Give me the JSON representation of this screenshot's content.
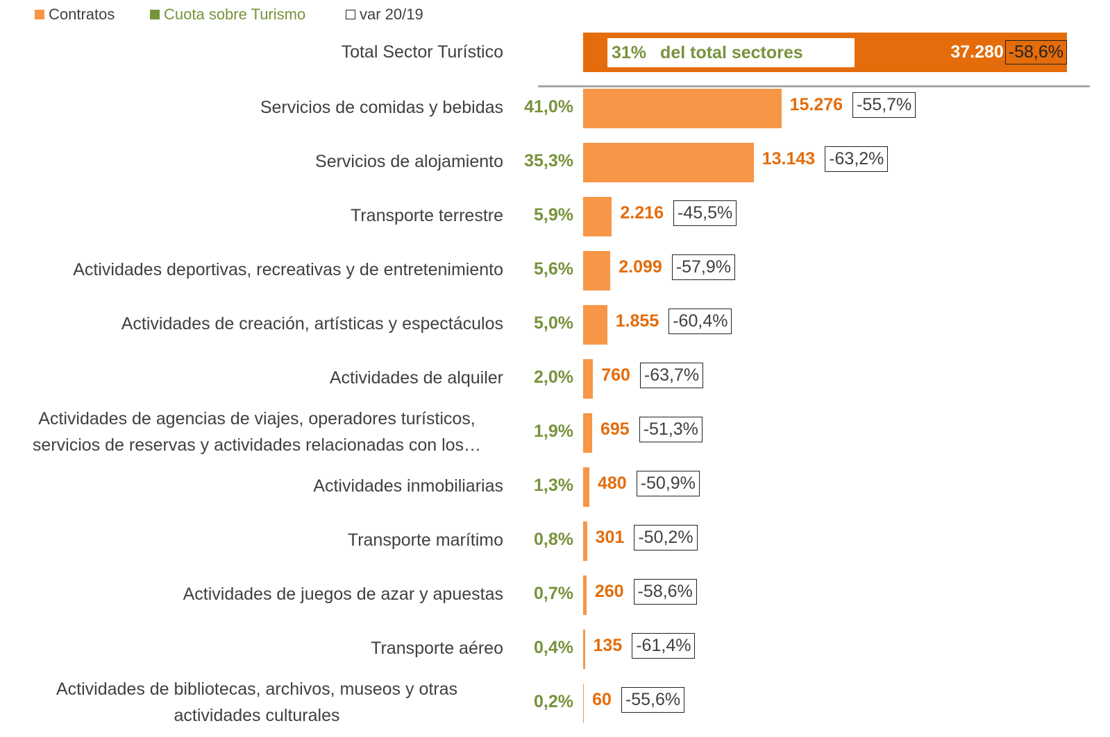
{
  "chart_data": {
    "type": "bar",
    "orientation": "horizontal",
    "total": {
      "label": "Total Sector Turístico",
      "value": 37280,
      "value_label": "37.280",
      "share": 31,
      "share_label": "31%",
      "share_text": "del total sectores",
      "var": -58.6,
      "var_label": "-58,6%",
      "color": "#e46c0a"
    },
    "categories": [
      "Servicios de comidas y bebidas",
      "Servicios de alojamiento",
      "Transporte terrestre",
      "Actividades deportivas, recreativas y de entretenimiento",
      "Actividades de creación, artísticas y espectáculos",
      "Actividades de alquiler",
      "Actividades de agencias de viajes, operadores turísticos,\nservicios de reservas y actividades relacionadas con los…",
      "Actividades inmobiliarias",
      "Transporte marítimo",
      "Actividades de juegos de azar y apuestas",
      "Transporte aéreo",
      "Actividades de bibliotecas, archivos, museos y otras\nactividades culturales"
    ],
    "series": [
      {
        "name": "Contratos",
        "color": "#f79646",
        "values": [
          15276,
          13143,
          2216,
          2099,
          1855,
          760,
          695,
          480,
          301,
          260,
          135,
          60
        ],
        "value_labels": [
          "15.276",
          "13.143",
          "2.216",
          "2.099",
          "1.855",
          "760",
          "695",
          "480",
          "301",
          "260",
          "135",
          "60"
        ]
      },
      {
        "name": "Cuota sobre Turismo",
        "color": "#77933c",
        "values": [
          41.0,
          35.3,
          5.9,
          5.6,
          5.0,
          2.0,
          1.9,
          1.3,
          0.8,
          0.7,
          0.4,
          0.2
        ],
        "value_labels": [
          "41,0%",
          "35,3%",
          "5,9%",
          "5,6%",
          "5,0%",
          "2,0%",
          "1,9%",
          "1,3%",
          "0,8%",
          "0,7%",
          "0,4%",
          "0,2%"
        ]
      },
      {
        "name": "var 20/19",
        "color": "#ffffff",
        "values": [
          -55.7,
          -63.2,
          -45.5,
          -57.9,
          -60.4,
          -63.7,
          -51.3,
          -50.9,
          -50.2,
          -58.6,
          -61.4,
          -55.6
        ],
        "value_labels": [
          "-55,7%",
          "-63,2%",
          "-45,5%",
          "-57,9%",
          "-60,4%",
          "-63,7%",
          "-51,3%",
          "-50,9%",
          "-50,2%",
          "-58,6%",
          "-61,4%",
          "-55,6%"
        ]
      }
    ]
  }
}
